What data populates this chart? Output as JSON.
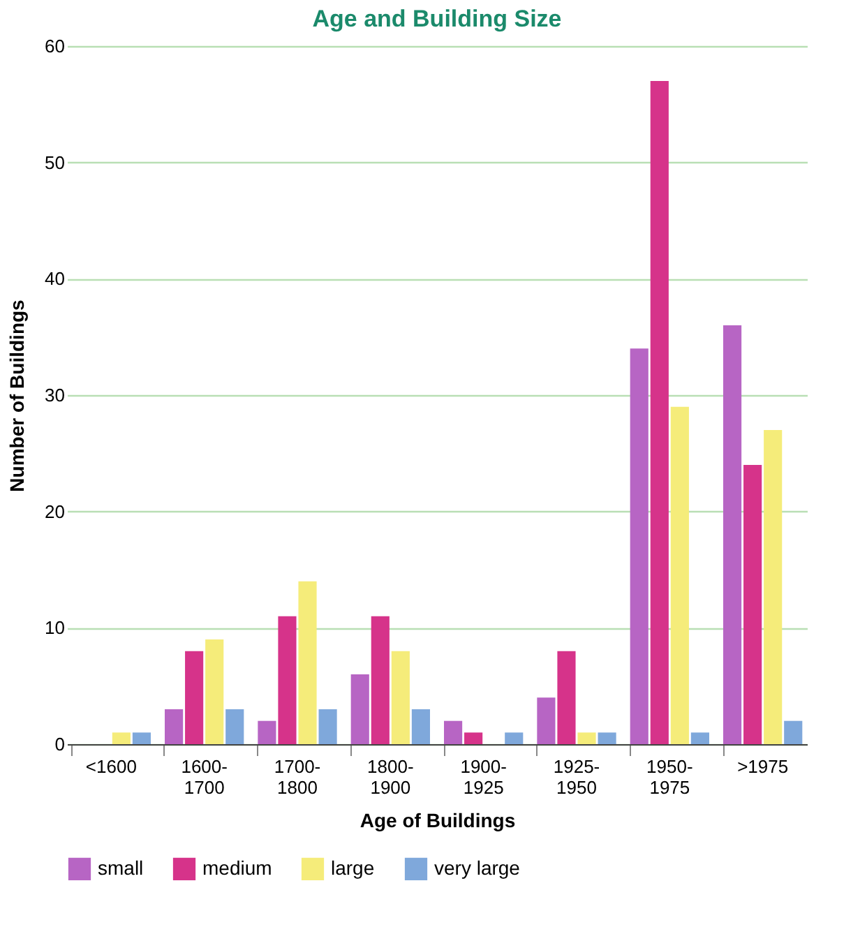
{
  "chart_data": {
    "type": "bar",
    "title": "Age and Building Size",
    "xlabel": "Age of Buildings",
    "ylabel": "Number of Buildings",
    "categories": [
      "<1600",
      "1600-\n1700",
      "1700-\n1800",
      "1800-\n1900",
      "1900-\n1925",
      "1925-\n1950",
      "1950-\n1975",
      ">1975"
    ],
    "series": [
      {
        "name": "small",
        "color": "#b765c4",
        "values": [
          0,
          3,
          2,
          6,
          2,
          4,
          34,
          36
        ]
      },
      {
        "name": "medium",
        "color": "#d6338a",
        "values": [
          0,
          8,
          11,
          11,
          1,
          8,
          57,
          24
        ]
      },
      {
        "name": "large",
        "color": "#f5ec7a",
        "values": [
          1,
          9,
          14,
          8,
          0,
          1,
          29,
          27
        ]
      },
      {
        "name": "very large",
        "color": "#7fa8db",
        "values": [
          1,
          3,
          3,
          3,
          1,
          1,
          1,
          2
        ]
      }
    ],
    "ylim": [
      0,
      60
    ],
    "yticks": [
      0,
      10,
      20,
      30,
      40,
      50,
      60
    ],
    "grid": "y",
    "legend": "bottom"
  }
}
